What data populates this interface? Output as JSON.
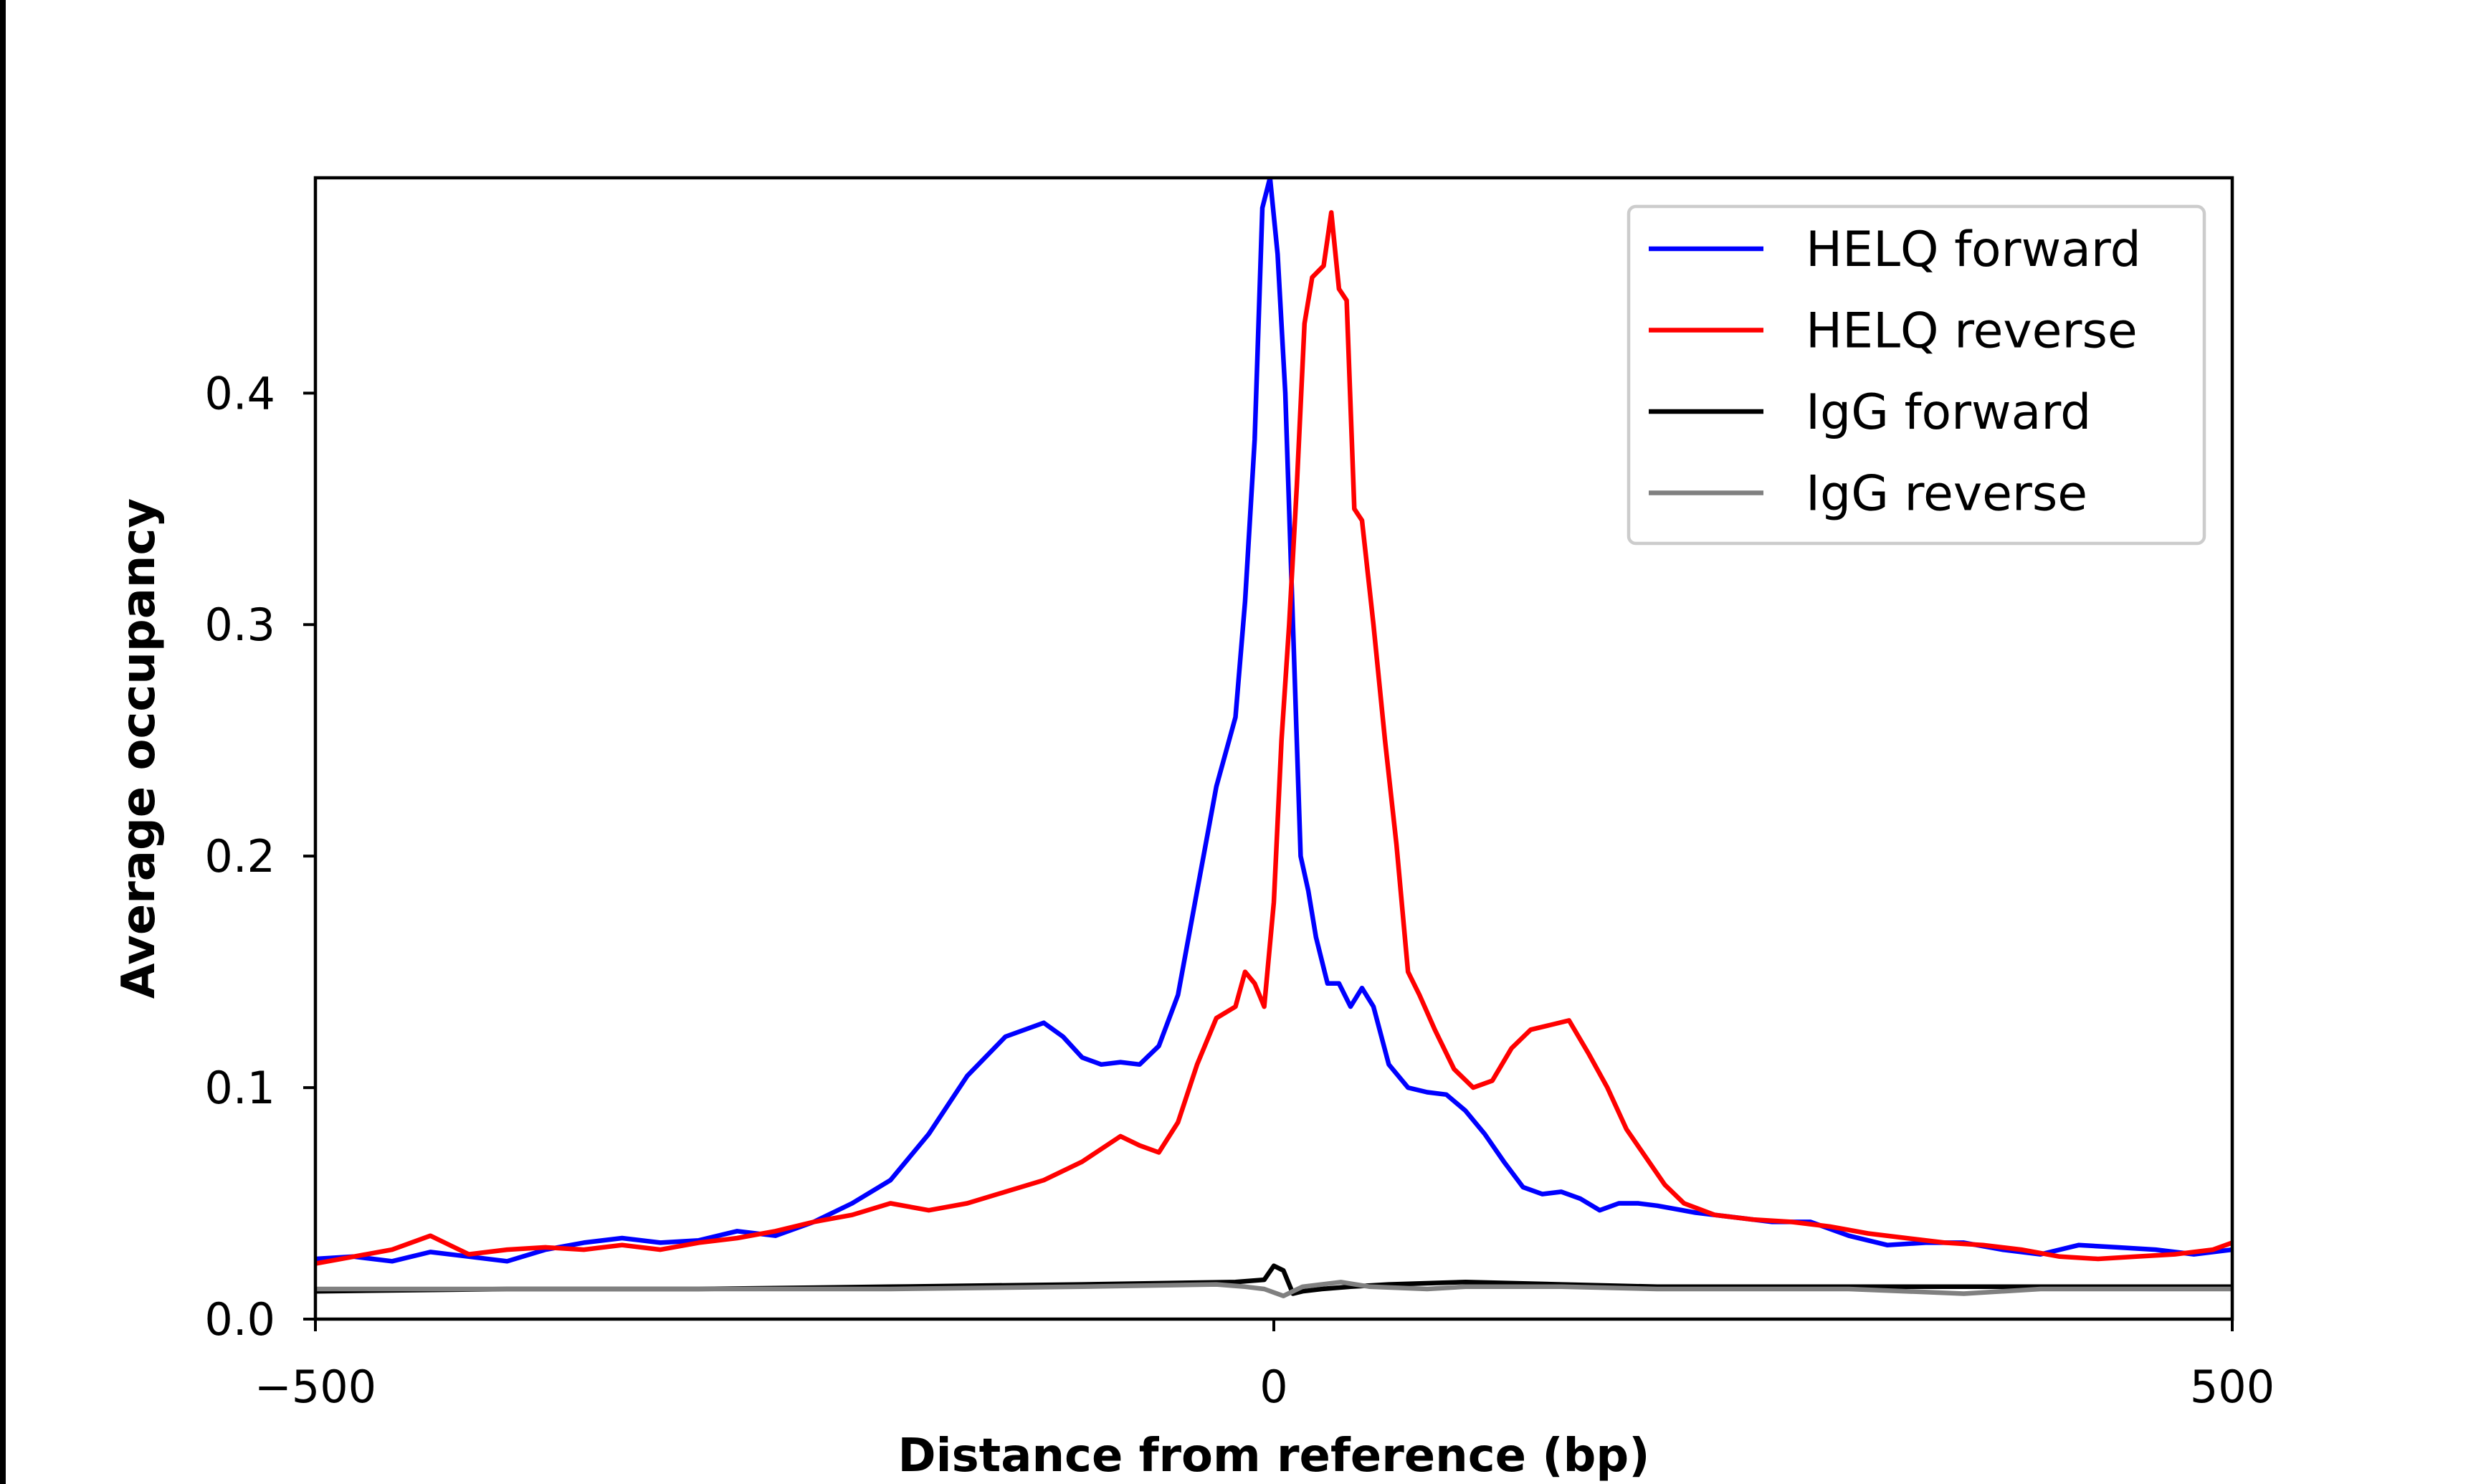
{
  "chart_data": {
    "type": "line",
    "xlabel": "Distance from reference (bp)",
    "ylabel": "Average occupancy",
    "xlim": [
      -500,
      500
    ],
    "ylim": [
      0,
      0.493
    ],
    "xticks": [
      -500,
      0,
      500
    ],
    "xtick_labels": [
      "−500",
      "0",
      "500"
    ],
    "yticks": [
      0.0,
      0.1,
      0.2,
      0.3,
      0.4
    ],
    "ytick_labels": [
      "0.0",
      "0.1",
      "0.2",
      "0.3",
      "0.4"
    ],
    "grid": false,
    "legend_position": "top-right",
    "series": [
      {
        "name": "HELQ forward",
        "color": "#0000ff",
        "x": [
          -500,
          -480,
          -460,
          -440,
          -420,
          -400,
          -380,
          -360,
          -340,
          -320,
          -300,
          -280,
          -260,
          -240,
          -220,
          -200,
          -180,
          -160,
          -140,
          -120,
          -110,
          -100,
          -90,
          -80,
          -70,
          -60,
          -50,
          -40,
          -30,
          -20,
          -15,
          -10,
          -6,
          -2,
          2,
          6,
          10,
          14,
          18,
          22,
          28,
          34,
          40,
          46,
          52,
          60,
          70,
          80,
          90,
          100,
          110,
          120,
          130,
          140,
          150,
          160,
          170,
          180,
          190,
          200,
          220,
          240,
          260,
          280,
          300,
          320,
          340,
          360,
          380,
          400,
          420,
          440,
          460,
          480,
          500
        ],
        "y": [
          0.026,
          0.027,
          0.025,
          0.029,
          0.027,
          0.025,
          0.03,
          0.033,
          0.035,
          0.033,
          0.034,
          0.038,
          0.036,
          0.042,
          0.05,
          0.06,
          0.08,
          0.105,
          0.122,
          0.128,
          0.122,
          0.113,
          0.11,
          0.111,
          0.11,
          0.118,
          0.14,
          0.185,
          0.23,
          0.26,
          0.31,
          0.38,
          0.48,
          0.493,
          0.46,
          0.4,
          0.3,
          0.2,
          0.185,
          0.165,
          0.145,
          0.145,
          0.135,
          0.143,
          0.135,
          0.11,
          0.1,
          0.098,
          0.097,
          0.09,
          0.08,
          0.068,
          0.057,
          0.054,
          0.055,
          0.052,
          0.047,
          0.05,
          0.05,
          0.049,
          0.046,
          0.044,
          0.042,
          0.042,
          0.036,
          0.032,
          0.033,
          0.033,
          0.03,
          0.028,
          0.032,
          0.031,
          0.03,
          0.028,
          0.03
        ]
      },
      {
        "name": "HELQ reverse",
        "color": "#ff0000",
        "x": [
          -500,
          -480,
          -460,
          -440,
          -420,
          -400,
          -380,
          -360,
          -340,
          -320,
          -300,
          -280,
          -260,
          -240,
          -220,
          -200,
          -180,
          -160,
          -140,
          -120,
          -100,
          -80,
          -70,
          -60,
          -50,
          -40,
          -30,
          -20,
          -15,
          -10,
          -5,
          0,
          4,
          8,
          12,
          16,
          20,
          26,
          30,
          34,
          38,
          42,
          46,
          52,
          58,
          64,
          70,
          76,
          84,
          94,
          104,
          114,
          124,
          134,
          144,
          154,
          164,
          174,
          184,
          194,
          204,
          214,
          230,
          250,
          270,
          290,
          310,
          330,
          350,
          370,
          390,
          410,
          430,
          450,
          470,
          490,
          500
        ],
        "y": [
          0.024,
          0.027,
          0.03,
          0.036,
          0.028,
          0.03,
          0.031,
          0.03,
          0.032,
          0.03,
          0.033,
          0.035,
          0.038,
          0.042,
          0.045,
          0.05,
          0.047,
          0.05,
          0.055,
          0.06,
          0.068,
          0.079,
          0.075,
          0.072,
          0.085,
          0.11,
          0.13,
          0.135,
          0.15,
          0.145,
          0.135,
          0.18,
          0.25,
          0.3,
          0.36,
          0.43,
          0.45,
          0.455,
          0.478,
          0.445,
          0.44,
          0.35,
          0.345,
          0.3,
          0.25,
          0.205,
          0.15,
          0.14,
          0.125,
          0.108,
          0.1,
          0.103,
          0.117,
          0.125,
          0.127,
          0.129,
          0.115,
          0.1,
          0.082,
          0.07,
          0.058,
          0.05,
          0.045,
          0.043,
          0.042,
          0.04,
          0.037,
          0.035,
          0.033,
          0.032,
          0.03,
          0.027,
          0.026,
          0.027,
          0.028,
          0.03,
          0.033
        ]
      },
      {
        "name": "IgG forward",
        "color": "#000000",
        "x": [
          -500,
          -400,
          -300,
          -200,
          -100,
          -20,
          -5,
          0,
          5,
          10,
          15,
          25,
          40,
          60,
          100,
          150,
          200,
          300,
          400,
          500
        ],
        "y": [
          0.012,
          0.013,
          0.013,
          0.014,
          0.015,
          0.016,
          0.017,
          0.023,
          0.021,
          0.011,
          0.012,
          0.013,
          0.014,
          0.015,
          0.016,
          0.015,
          0.014,
          0.014,
          0.014,
          0.014
        ]
      },
      {
        "name": "IgG reverse",
        "color": "#808080",
        "x": [
          -500,
          -400,
          -300,
          -200,
          -100,
          -30,
          -15,
          -5,
          5,
          10,
          15,
          25,
          35,
          50,
          80,
          100,
          150,
          200,
          300,
          360,
          400,
          500
        ],
        "y": [
          0.013,
          0.013,
          0.013,
          0.013,
          0.014,
          0.015,
          0.014,
          0.013,
          0.01,
          0.012,
          0.014,
          0.015,
          0.016,
          0.014,
          0.013,
          0.014,
          0.014,
          0.013,
          0.013,
          0.011,
          0.013,
          0.013
        ]
      }
    ]
  }
}
